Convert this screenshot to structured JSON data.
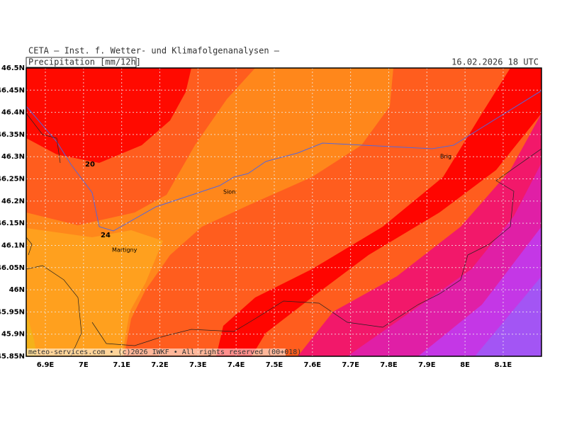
{
  "header": {
    "institute": "CETA — Inst. f. Wetter- und Klimafolgenanalysen —",
    "variable": "Precipitation [mm/12h]",
    "valid_time": "16.02.2026 18 UTC"
  },
  "latitude_labels": [
    "46.5N",
    "46.45N",
    "46.4N",
    "46.35N",
    "46.3N",
    "46.25N",
    "46.2N",
    "46.15N",
    "46.1N",
    "46.05N",
    "46N",
    "45.95N",
    "45.9N",
    "45.85N"
  ],
  "longitude_labels": [
    "6.9E",
    "7E",
    "7.1E",
    "7.2E",
    "7.3E",
    "7.4E",
    "7.5E",
    "7.6E",
    "7.7E",
    "7.8E",
    "7.9E",
    "8E",
    "8.1E"
  ],
  "places": [
    "Martigny",
    "Sion",
    "Brig"
  ],
  "contour_labels": [
    "20",
    "24"
  ],
  "footer": "meteo-services.com • (c)2026 IWKF • All rights reserved (00+018)"
}
